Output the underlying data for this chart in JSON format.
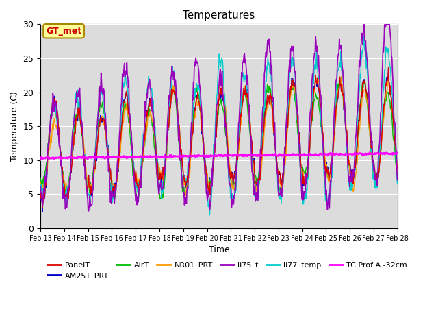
{
  "title": "Temperatures",
  "xlabel": "Time",
  "ylabel": "Temperature (C)",
  "ylim": [
    0,
    30
  ],
  "plot_bg_color": "#dcdcdc",
  "series": {
    "PanelT": {
      "color": "#dd0000",
      "lw": 1.0,
      "zorder": 4
    },
    "AM25T_PRT": {
      "color": "#0000cc",
      "lw": 1.0,
      "zorder": 3
    },
    "AirT": {
      "color": "#00bb00",
      "lw": 1.0,
      "zorder": 3
    },
    "NR01_PRT": {
      "color": "#ff9900",
      "lw": 1.0,
      "zorder": 3
    },
    "li75_t": {
      "color": "#9900bb",
      "lw": 1.2,
      "zorder": 5
    },
    "li77_temp": {
      "color": "#00cccc",
      "lw": 1.0,
      "zorder": 3
    },
    "TC Prof A -32cm": {
      "color": "#ff00ff",
      "lw": 1.8,
      "zorder": 6
    }
  },
  "annotation_text": "GT_met",
  "annotation_color": "#cc0000",
  "annotation_bg": "#ffff99",
  "annotation_edge": "#aa8800",
  "xtick_labels": [
    "Feb 13",
    "Feb 14",
    "Feb 15",
    "Feb 16",
    "Feb 17",
    "Feb 18",
    "Feb 19",
    "Feb 20",
    "Feb 21",
    "Feb 22",
    "Feb 23",
    "Feb 24",
    "Feb 25",
    "Feb 26",
    "Feb 27",
    "Feb 28"
  ],
  "ytick_values": [
    0,
    5,
    10,
    15,
    20,
    25,
    30
  ],
  "figsize": [
    6.4,
    4.8
  ],
  "dpi": 100
}
